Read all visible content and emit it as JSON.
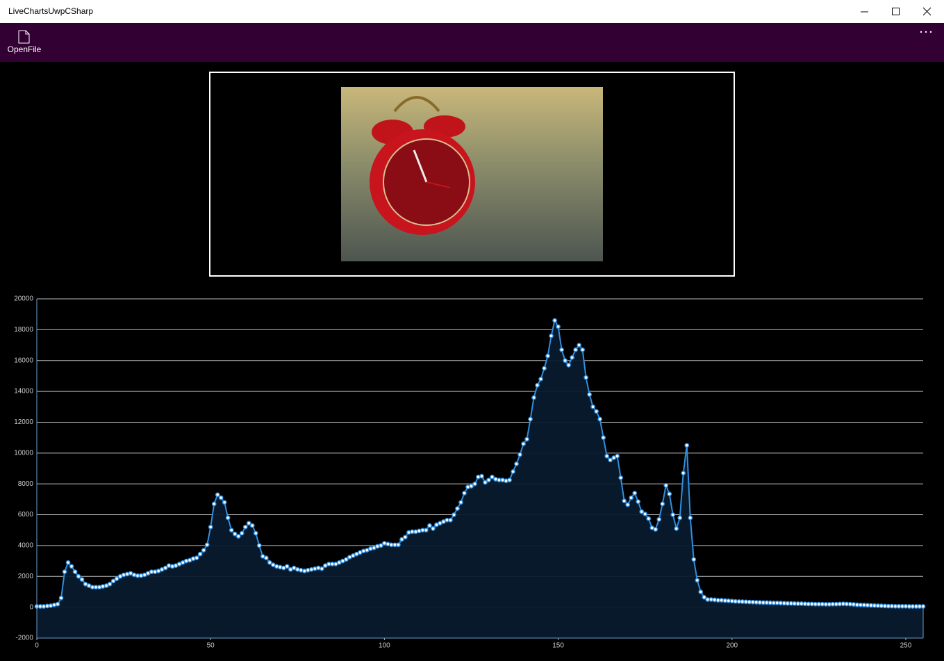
{
  "window": {
    "title": "LiveChartsUwpCSharp"
  },
  "command_bar": {
    "button_label": "OpenFile"
  },
  "chart_data": {
    "type": "line",
    "x": [
      0,
      1,
      2,
      3,
      4,
      5,
      6,
      7,
      8,
      9,
      10,
      11,
      12,
      13,
      14,
      15,
      16,
      17,
      18,
      19,
      20,
      21,
      22,
      23,
      24,
      25,
      26,
      27,
      28,
      29,
      30,
      31,
      32,
      33,
      34,
      35,
      36,
      37,
      38,
      39,
      40,
      41,
      42,
      43,
      44,
      45,
      46,
      47,
      48,
      49,
      50,
      51,
      52,
      53,
      54,
      55,
      56,
      57,
      58,
      59,
      60,
      61,
      62,
      63,
      64,
      65,
      66,
      67,
      68,
      69,
      70,
      71,
      72,
      73,
      74,
      75,
      76,
      77,
      78,
      79,
      80,
      81,
      82,
      83,
      84,
      85,
      86,
      87,
      88,
      89,
      90,
      91,
      92,
      93,
      94,
      95,
      96,
      97,
      98,
      99,
      100,
      101,
      102,
      103,
      104,
      105,
      106,
      107,
      108,
      109,
      110,
      111,
      112,
      113,
      114,
      115,
      116,
      117,
      118,
      119,
      120,
      121,
      122,
      123,
      124,
      125,
      126,
      127,
      128,
      129,
      130,
      131,
      132,
      133,
      134,
      135,
      136,
      137,
      138,
      139,
      140,
      141,
      142,
      143,
      144,
      145,
      146,
      147,
      148,
      149,
      150,
      151,
      152,
      153,
      154,
      155,
      156,
      157,
      158,
      159,
      160,
      161,
      162,
      163,
      164,
      165,
      166,
      167,
      168,
      169,
      170,
      171,
      172,
      173,
      174,
      175,
      176,
      177,
      178,
      179,
      180,
      181,
      182,
      183,
      184,
      185,
      186,
      187,
      188,
      189,
      190,
      191,
      192,
      193,
      194,
      195,
      196,
      197,
      198,
      199,
      200,
      201,
      202,
      203,
      204,
      205,
      206,
      207,
      208,
      209,
      210,
      211,
      212,
      213,
      214,
      215,
      216,
      217,
      218,
      219,
      220,
      221,
      222,
      223,
      224,
      225,
      226,
      227,
      228,
      229,
      230,
      231,
      232,
      233,
      234,
      235,
      236,
      237,
      238,
      239,
      240,
      241,
      242,
      243,
      244,
      245,
      246,
      247,
      248,
      249,
      250,
      251,
      252,
      253,
      254,
      255
    ],
    "series": [
      {
        "color": "#2f8fe0",
        "values": [
          50,
          50,
          50,
          80,
          100,
          150,
          200,
          600,
          2300,
          2900,
          2650,
          2300,
          2000,
          1800,
          1500,
          1400,
          1300,
          1300,
          1300,
          1350,
          1400,
          1500,
          1700,
          1850,
          2000,
          2100,
          2150,
          2200,
          2100,
          2050,
          2050,
          2100,
          2200,
          2300,
          2300,
          2350,
          2450,
          2550,
          2700,
          2650,
          2700,
          2800,
          2900,
          3000,
          3050,
          3150,
          3200,
          3450,
          3700,
          4050,
          5200,
          6700,
          7300,
          7100,
          6800,
          5800,
          5000,
          4750,
          4600,
          4800,
          5200,
          5450,
          5300,
          4800,
          4000,
          3300,
          3200,
          2900,
          2750,
          2650,
          2600,
          2550,
          2650,
          2450,
          2550,
          2450,
          2400,
          2350,
          2400,
          2450,
          2500,
          2550,
          2500,
          2700,
          2800,
          2800,
          2800,
          2900,
          3000,
          3100,
          3250,
          3350,
          3450,
          3550,
          3650,
          3700,
          3800,
          3850,
          3950,
          4000,
          4150,
          4100,
          4050,
          4050,
          4050,
          4400,
          4550,
          4850,
          4900,
          4900,
          4950,
          5000,
          5000,
          5300,
          5100,
          5350,
          5450,
          5550,
          5650,
          5650,
          6000,
          6400,
          6800,
          7400,
          7800,
          7850,
          8000,
          8450,
          8500,
          8100,
          8250,
          8450,
          8300,
          8250,
          8250,
          8200,
          8250,
          8800,
          9300,
          9900,
          10600,
          10900,
          12200,
          13600,
          14400,
          14800,
          15500,
          16300,
          17600,
          18600,
          18200,
          16700,
          16000,
          15700,
          16200,
          16700,
          17000,
          16700,
          14900,
          13800,
          13000,
          12700,
          12200,
          11000,
          9800,
          9550,
          9700,
          9800,
          8400,
          6900,
          6650,
          7100,
          7400,
          6850,
          6200,
          6050,
          5750,
          5150,
          5050,
          5700,
          6700,
          7900,
          7350,
          6000,
          5100,
          5800,
          8700,
          10500,
          5800,
          3100,
          1750,
          1000,
          650,
          500,
          500,
          480,
          450,
          450,
          430,
          420,
          400,
          380,
          370,
          360,
          350,
          340,
          330,
          320,
          310,
          300,
          300,
          290,
          280,
          280,
          270,
          260,
          250,
          250,
          240,
          230,
          230,
          220,
          210,
          210,
          200,
          200,
          200,
          190,
          190,
          200,
          200,
          210,
          220,
          210,
          200,
          180,
          160,
          150,
          140,
          130,
          120,
          110,
          100,
          90,
          80,
          70,
          70,
          60,
          60,
          60,
          60,
          50,
          50,
          50,
          50,
          50
        ]
      }
    ],
    "xlim": [
      0,
      255
    ],
    "xticks": [
      0,
      50,
      100,
      150,
      200,
      250
    ],
    "ylim": [
      -2000,
      20000
    ],
    "yticks": [
      -2000,
      0,
      2000,
      4000,
      6000,
      8000,
      10000,
      12000,
      14000,
      16000,
      18000,
      20000
    ],
    "grid": true
  }
}
